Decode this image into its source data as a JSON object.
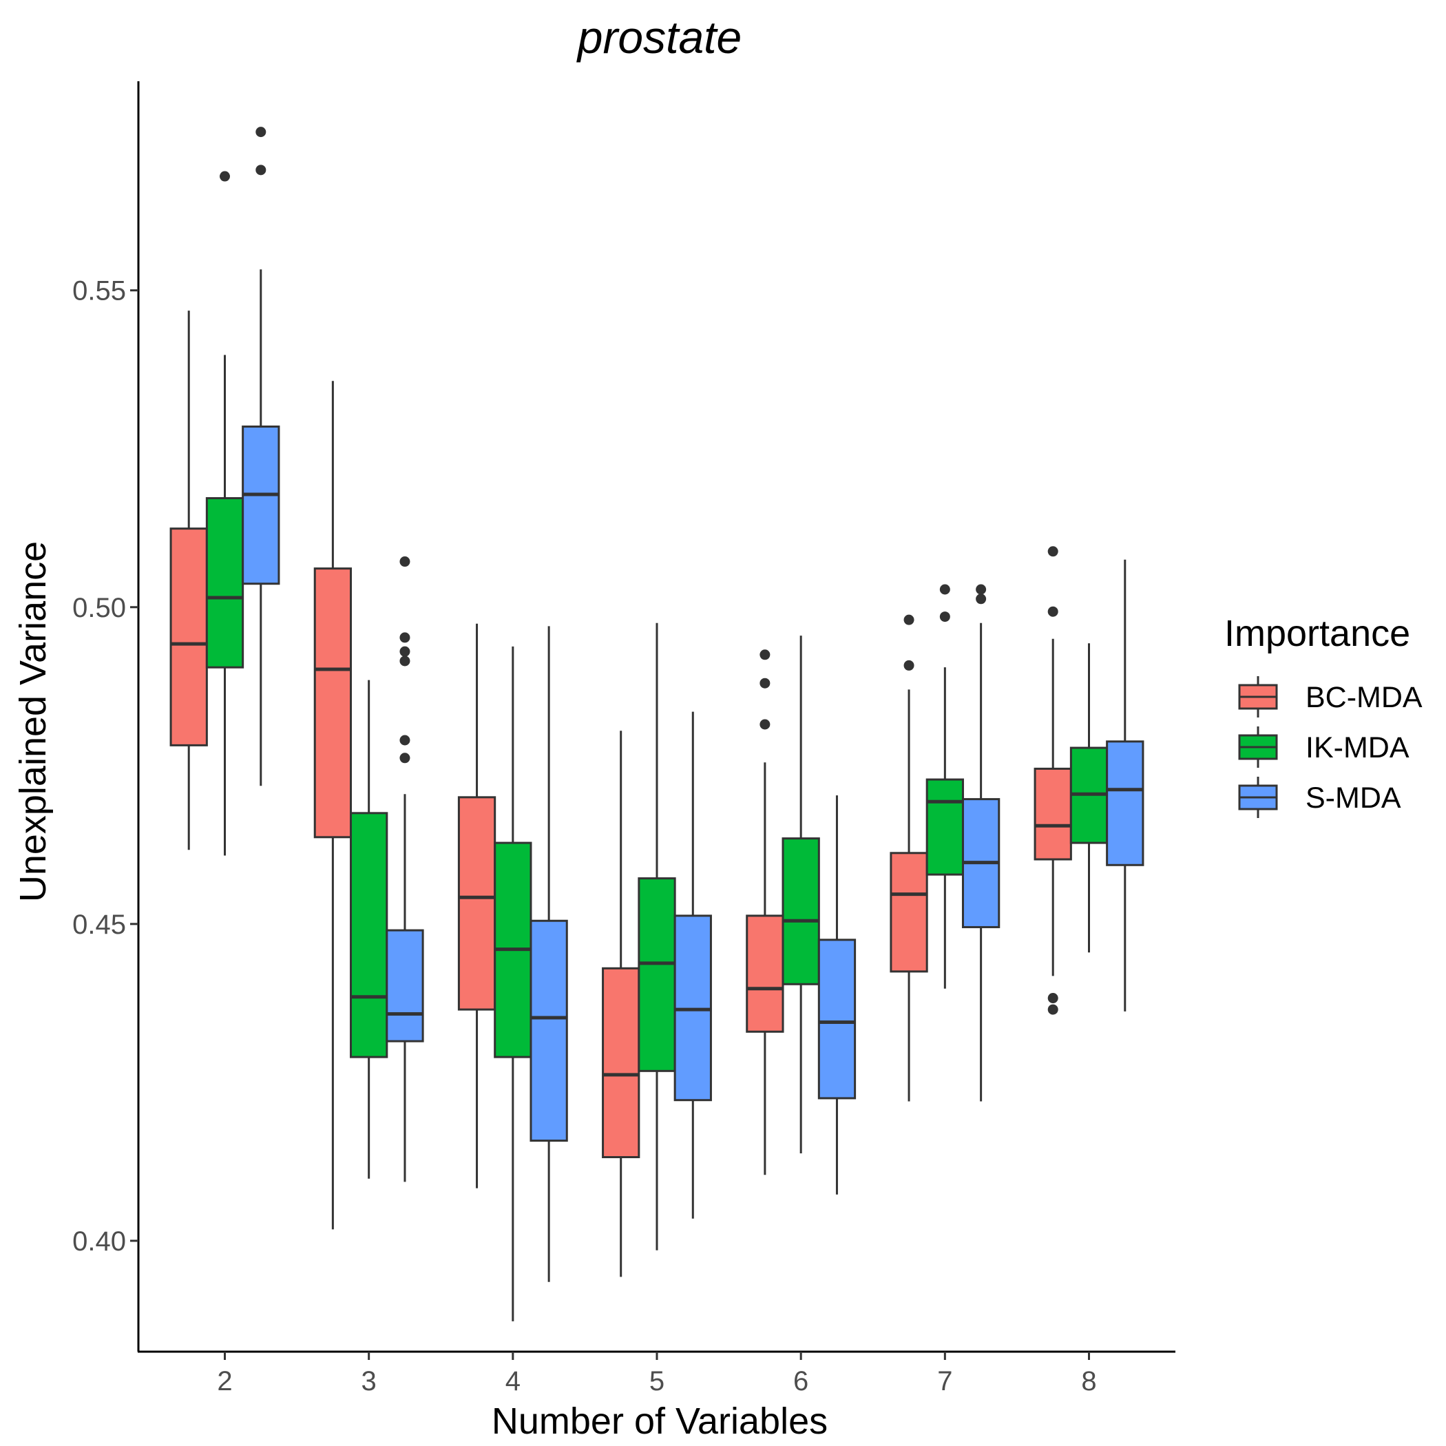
{
  "chart_data": {
    "type": "boxplot",
    "title": "prostate",
    "xlabel": "Number of Variables",
    "ylabel": "Unexplained Variance",
    "categories": [
      "2",
      "3",
      "4",
      "5",
      "6",
      "7",
      "8"
    ],
    "yticks": [
      "0.40",
      "0.45",
      "0.50",
      "0.55"
    ],
    "ylim": [
      0.3825,
      0.583
    ],
    "legend": {
      "title": "Importance",
      "position": "right"
    },
    "series": [
      {
        "name": "BC-MDA",
        "color": "#F8766D",
        "boxes": [
          {
            "min": 0.4617,
            "q1": 0.4782,
            "median": 0.4942,
            "q3": 0.5124,
            "max": 0.5468,
            "outliers": []
          },
          {
            "min": 0.4018,
            "q1": 0.4637,
            "median": 0.4902,
            "q3": 0.5061,
            "max": 0.5357,
            "outliers": []
          },
          {
            "min": 0.4083,
            "q1": 0.4365,
            "median": 0.4542,
            "q3": 0.47,
            "max": 0.4974,
            "outliers": []
          },
          {
            "min": 0.3943,
            "q1": 0.4132,
            "median": 0.4262,
            "q3": 0.443,
            "max": 0.4805,
            "outliers": []
          },
          {
            "min": 0.4104,
            "q1": 0.433,
            "median": 0.4398,
            "q3": 0.4513,
            "max": 0.4755,
            "outliers": [
              0.4815,
              0.488,
              0.4925
            ]
          },
          {
            "min": 0.422,
            "q1": 0.4425,
            "median": 0.4547,
            "q3": 0.4612,
            "max": 0.487,
            "outliers": [
              0.4908,
              0.498
            ]
          },
          {
            "min": 0.4418,
            "q1": 0.4602,
            "median": 0.4655,
            "q3": 0.4745,
            "max": 0.495,
            "outliers": [
              0.4365,
              0.4383,
              0.4993,
              0.5088
            ]
          }
        ]
      },
      {
        "name": "IK-MDA",
        "color": "#00BA38",
        "boxes": [
          {
            "min": 0.4608,
            "q1": 0.4905,
            "median": 0.5015,
            "q3": 0.5172,
            "max": 0.5398,
            "outliers": [
              0.568
            ]
          },
          {
            "min": 0.4098,
            "q1": 0.429,
            "median": 0.4385,
            "q3": 0.4675,
            "max": 0.4885,
            "outliers": []
          },
          {
            "min": 0.3873,
            "q1": 0.429,
            "median": 0.446,
            "q3": 0.4628,
            "max": 0.4938,
            "outliers": []
          },
          {
            "min": 0.3985,
            "q1": 0.4268,
            "median": 0.4438,
            "q3": 0.4572,
            "max": 0.4975,
            "outliers": []
          },
          {
            "min": 0.4138,
            "q1": 0.4405,
            "median": 0.4505,
            "q3": 0.4635,
            "max": 0.4955,
            "outliers": []
          },
          {
            "min": 0.4398,
            "q1": 0.4578,
            "median": 0.4693,
            "q3": 0.4728,
            "max": 0.4905,
            "outliers": [
              0.4985,
              0.5028
            ]
          },
          {
            "min": 0.4455,
            "q1": 0.4628,
            "median": 0.4705,
            "q3": 0.4778,
            "max": 0.4943,
            "outliers": []
          }
        ]
      },
      {
        "name": "S-MDA",
        "color": "#619CFF",
        "boxes": [
          {
            "min": 0.4718,
            "q1": 0.5037,
            "median": 0.5178,
            "q3": 0.5285,
            "max": 0.5533,
            "outliers": [
              0.569,
              0.575
            ]
          },
          {
            "min": 0.4093,
            "q1": 0.4315,
            "median": 0.4358,
            "q3": 0.449,
            "max": 0.4705,
            "outliers": [
              0.4762,
              0.479,
              0.4915,
              0.493,
              0.4952,
              0.5072
            ]
          },
          {
            "min": 0.3935,
            "q1": 0.4158,
            "median": 0.4352,
            "q3": 0.4505,
            "max": 0.497,
            "outliers": []
          },
          {
            "min": 0.4035,
            "q1": 0.4222,
            "median": 0.4365,
            "q3": 0.4513,
            "max": 0.4835,
            "outliers": []
          },
          {
            "min": 0.4073,
            "q1": 0.4225,
            "median": 0.4345,
            "q3": 0.4475,
            "max": 0.4703,
            "outliers": []
          },
          {
            "min": 0.422,
            "q1": 0.4495,
            "median": 0.4597,
            "q3": 0.4697,
            "max": 0.4975,
            "outliers": [
              0.5013,
              0.5028
            ]
          },
          {
            "min": 0.4362,
            "q1": 0.4593,
            "median": 0.4712,
            "q3": 0.4788,
            "max": 0.5075,
            "outliers": []
          }
        ]
      }
    ]
  }
}
